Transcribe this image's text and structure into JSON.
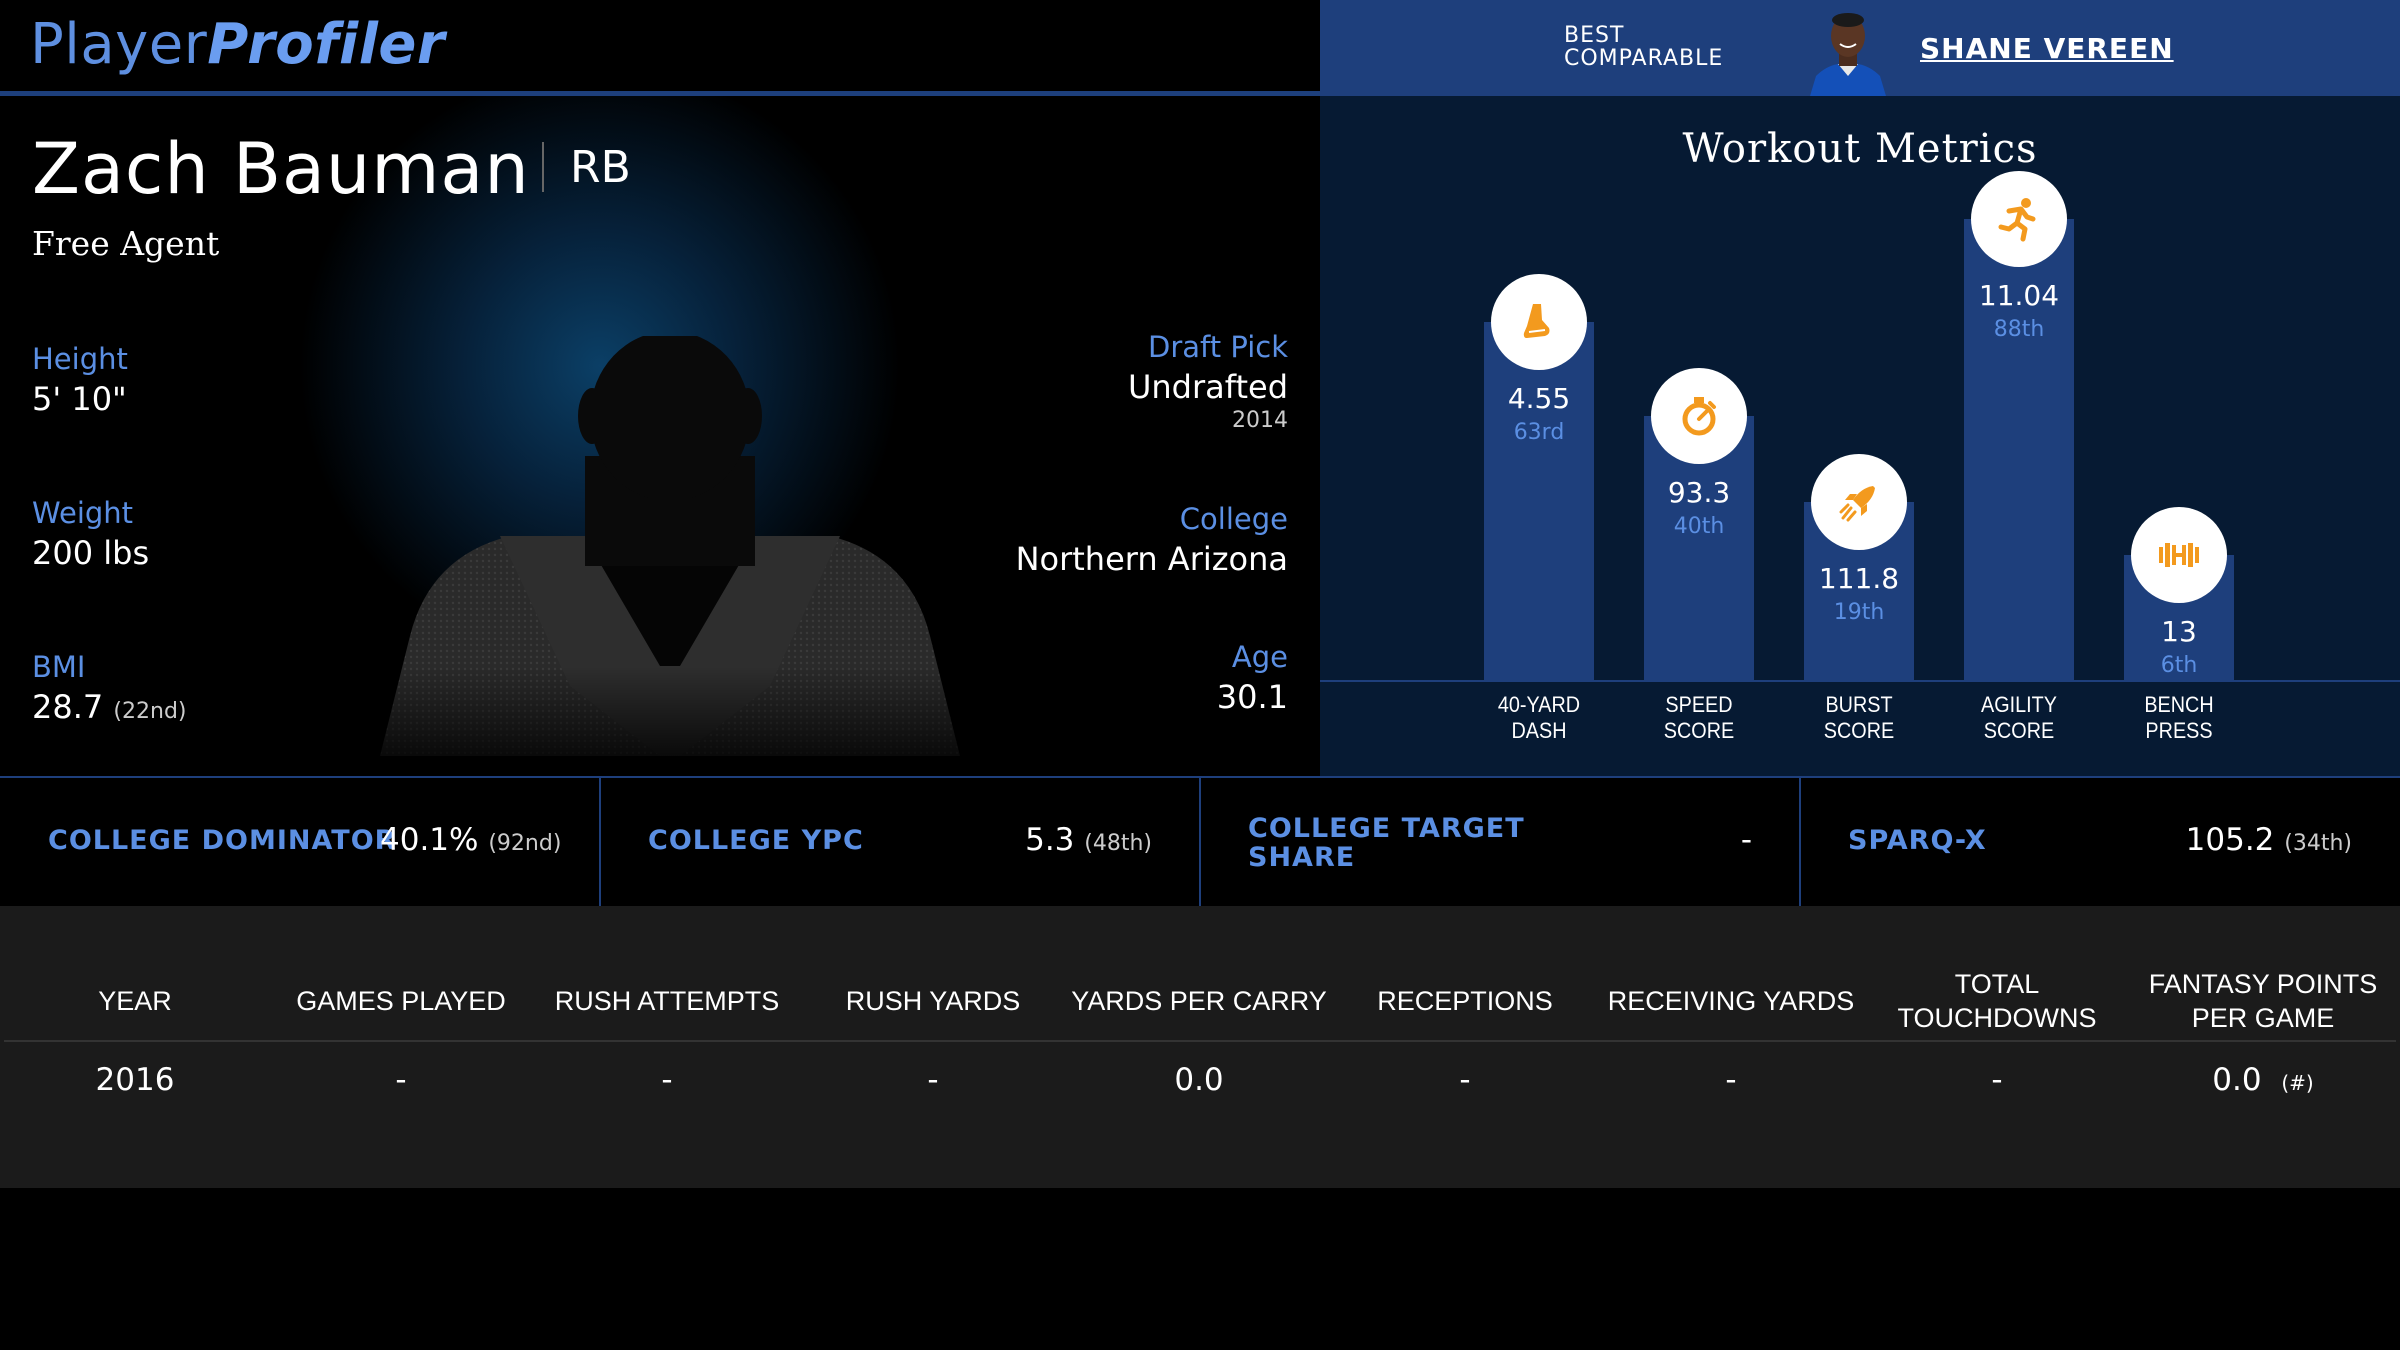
{
  "header": {
    "logo_part1": "Player",
    "logo_part2": "Profiler",
    "best_comparable_line1": "BEST",
    "best_comparable_line2": "COMPARABLE",
    "best_comparable_name": "SHANE VEREEN"
  },
  "player": {
    "name": "Zach Bauman",
    "position": "RB",
    "team": "Free Agent",
    "height_label": "Height",
    "height": "5' 10\"",
    "weight_label": "Weight",
    "weight": "200 lbs",
    "bmi_label": "BMI",
    "bmi": "28.7",
    "bmi_rank": "(22nd)",
    "draft_label": "Draft Pick",
    "draft": "Undrafted",
    "draft_year": "2014",
    "college_label": "College",
    "college": "Northern Arizona",
    "age_label": "Age",
    "age": "30.1"
  },
  "workout": {
    "title": "Workout Metrics",
    "metrics": [
      {
        "label1": "40-YARD",
        "label2": "DASH",
        "value": "4.55",
        "percentile_text": "63rd",
        "percentile": 63,
        "icon": "shoe-icon"
      },
      {
        "label1": "SPEED",
        "label2": "SCORE",
        "value": "93.3",
        "percentile_text": "40th",
        "percentile": 40,
        "icon": "stopwatch-icon"
      },
      {
        "label1": "BURST",
        "label2": "SCORE",
        "value": "111.8",
        "percentile_text": "19th",
        "percentile": 19,
        "icon": "rocket-icon"
      },
      {
        "label1": "AGILITY",
        "label2": "SCORE",
        "value": "11.04",
        "percentile_text": "88th",
        "percentile": 88,
        "icon": "runner-icon"
      },
      {
        "label1": "BENCH",
        "label2": "PRESS",
        "value": "13",
        "percentile_text": "6th",
        "percentile": 6,
        "icon": "dumbbell-icon"
      }
    ],
    "icon_color": "#f39a1e"
  },
  "college_metrics": [
    {
      "label": "COLLEGE DOMINATOR",
      "value": "40.1%",
      "rank": "(92nd)"
    },
    {
      "label": "COLLEGE YPC",
      "value": "5.3",
      "rank": "(48th)"
    },
    {
      "label_line1": "COLLEGE TARGET",
      "label_line2": "SHARE",
      "value": "-",
      "rank": ""
    },
    {
      "label": "SPARQ-X",
      "value": "105.2",
      "rank": "(34th)"
    }
  ],
  "stats_table": {
    "headers": [
      "YEAR",
      "GAMES PLAYED",
      "RUSH ATTEMPTS",
      "RUSH YARDS",
      "YARDS PER CARRY",
      "RECEPTIONS",
      "RECEIVING YARDS",
      "TOTAL TOUCHDOWNS",
      "FANTASY POINTS PER GAME"
    ],
    "rows": [
      [
        "2016",
        "-",
        "-",
        "-",
        "0.0",
        "-",
        "-",
        "-",
        "0.0"
      ]
    ],
    "fantasy_rank": "(#)"
  }
}
